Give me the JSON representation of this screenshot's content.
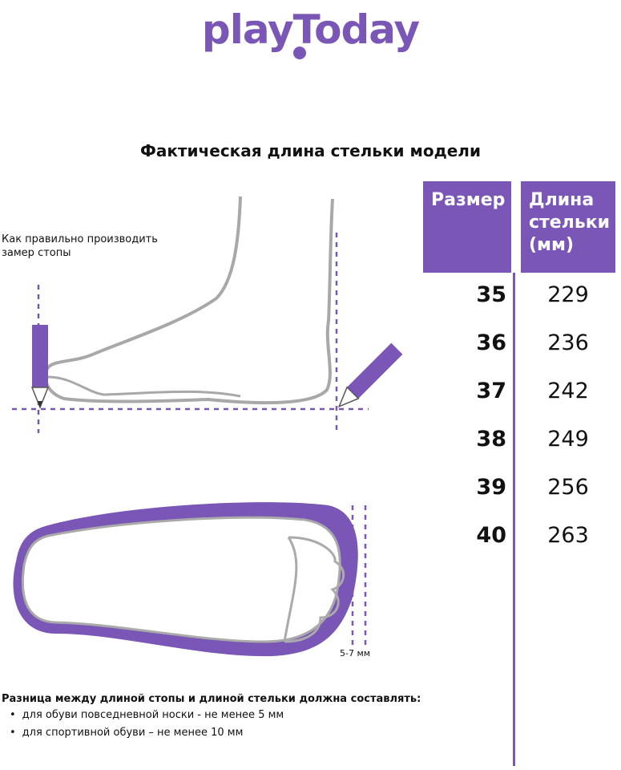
{
  "brand": {
    "logo_text": "playToday",
    "color": "#7a56b6"
  },
  "title": "Фактическая длина стельки модели",
  "table": {
    "headers": {
      "size": "Размер",
      "length": [
        "Длина",
        "стельки",
        "(мм)"
      ]
    },
    "rows": [
      {
        "size": "35",
        "length": "229"
      },
      {
        "size": "36",
        "length": "236"
      },
      {
        "size": "37",
        "length": "242"
      },
      {
        "size": "38",
        "length": "249"
      },
      {
        "size": "39",
        "length": "256"
      },
      {
        "size": "40",
        "length": "263"
      }
    ]
  },
  "illustration": {
    "caption": [
      "Как правильно производить",
      "замер стопы"
    ],
    "gap_label": "5-7 мм"
  },
  "note": {
    "title": "Разница между длиной стопы и длиной стельки должна составлять:",
    "bullets": [
      "для обуви повседневной носки -  не менее 5 мм",
      "для спортивной обуви – не менее 10 мм"
    ]
  }
}
